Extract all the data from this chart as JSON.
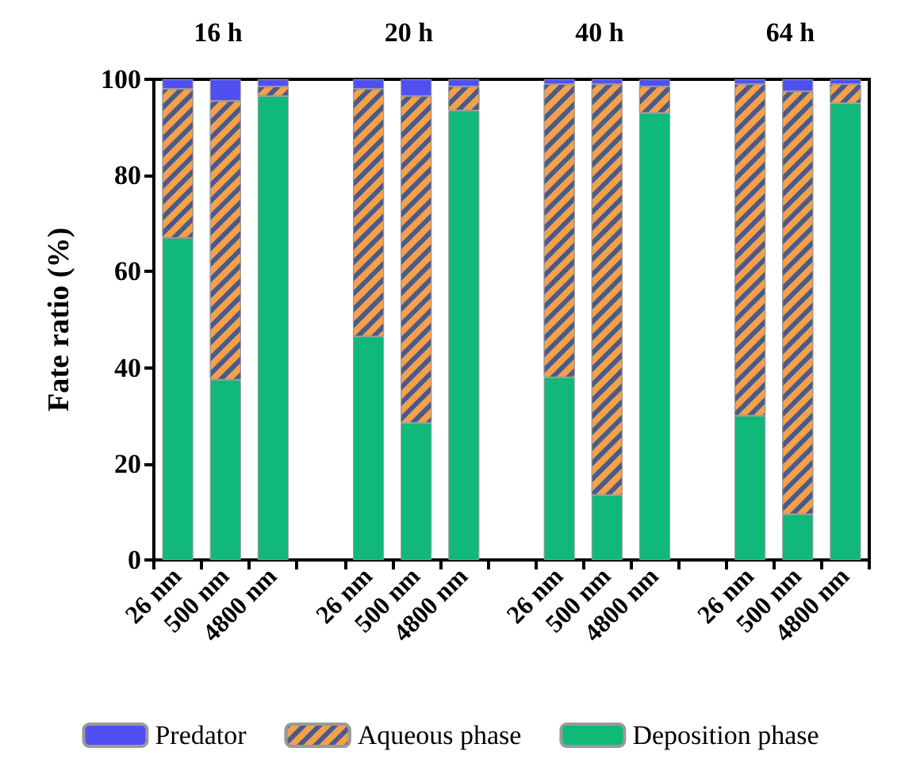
{
  "chart_data": {
    "type": "bar",
    "stacked": true,
    "ylabel": "Fate ratio (%)",
    "categories": [
      "26 nm",
      "500 nm",
      "4800 nm",
      null,
      "26 nm",
      "500 nm",
      "4800 nm",
      null,
      "26 nm",
      "500 nm",
      "4800 nm",
      null,
      "26 nm",
      "500 nm",
      "4800 nm"
    ],
    "series": [
      {
        "name": "Deposition phase",
        "color": "#10b87a",
        "values": [
          67,
          37.5,
          96.5,
          null,
          46.5,
          28.5,
          93.5,
          null,
          38,
          13.5,
          93,
          null,
          30,
          9.5,
          95
        ]
      },
      {
        "name": "Aqueous phase",
        "color": "#f4a14a",
        "values": [
          31,
          58,
          2,
          null,
          51.5,
          68,
          5,
          null,
          61,
          85.5,
          5.5,
          null,
          69,
          88,
          4
        ]
      },
      {
        "name": "Predator",
        "color": "#5050f0",
        "values": [
          2,
          4.5,
          1.5,
          null,
          2,
          3.5,
          1.5,
          null,
          1,
          1,
          1.5,
          null,
          1,
          2.5,
          1
        ]
      }
    ],
    "annotations": [
      "16 h",
      "20 h",
      "40 h",
      "64 h"
    ],
    "ylim": [
      0,
      100
    ],
    "yticks": [
      0,
      20,
      40,
      60,
      80,
      100
    ],
    "grid": false,
    "legend": "bottom"
  }
}
